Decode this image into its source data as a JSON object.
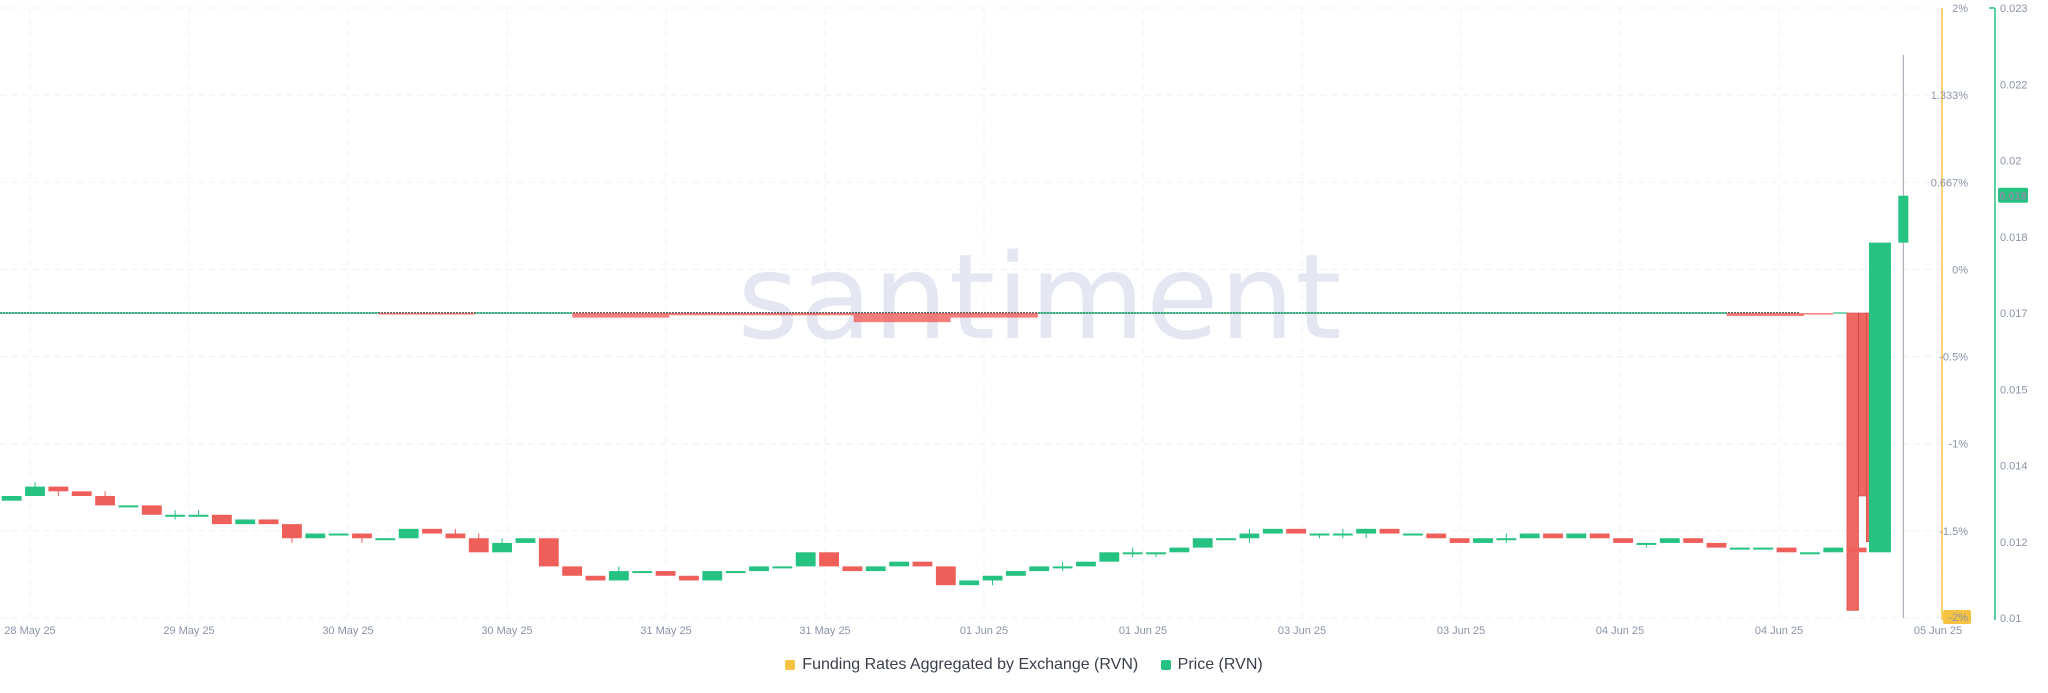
{
  "chart_data": {
    "type": "candlestick",
    "watermark": "santiment",
    "x_tick_labels": [
      "28 May 25",
      "29 May 25",
      "30 May 25",
      "30 May 25",
      "31 May 25",
      "31 May 25",
      "01 Jun 25",
      "01 Jun 25",
      "03 Jun 25",
      "03 Jun 25",
      "04 Jun 25",
      "04 Jun 25",
      "05 Jun 25"
    ],
    "y_left": {
      "label": "",
      "range": [
        -2,
        2
      ],
      "unit": "%",
      "ticks": [
        "2%",
        "1.333%",
        "0.667%",
        "0%",
        "-0.5%",
        "-1%",
        "-1.5%",
        "-2%"
      ],
      "highlight": "-2%"
    },
    "y_right": {
      "label": "",
      "range": [
        0.01,
        0.023
      ],
      "ticks": [
        "0.023",
        "0.022",
        "0.02",
        "0.018",
        "0.017",
        "0.015",
        "0.014",
        "0.012",
        "0.01"
      ],
      "last_price_label": "0.019"
    },
    "grid": true,
    "legend_position": "bottom-center",
    "colors": {
      "up": "#26c281",
      "down": "#ef5f5a",
      "funding_axis": "#f5c242",
      "price_axis": "#26c281",
      "grid": "#eef0f4",
      "highlight_bg": "#f5c242"
    },
    "series": [
      {
        "name": "Funding Rates Aggregated by Exchange (RVN)",
        "color": "#f5c242",
        "segments": [
          {
            "from": 0,
            "to": 0.195,
            "value": 0.005
          },
          {
            "from": 0.195,
            "to": 0.245,
            "value": -0.01
          },
          {
            "from": 0.245,
            "to": 0.295,
            "value": 0.005
          },
          {
            "from": 0.295,
            "to": 0.345,
            "value": -0.03
          },
          {
            "from": 0.345,
            "to": 0.44,
            "value": -0.015
          },
          {
            "from": 0.44,
            "to": 0.49,
            "value": -0.06
          },
          {
            "from": 0.49,
            "to": 0.535,
            "value": -0.03
          },
          {
            "from": 0.535,
            "to": 0.89,
            "value": 0.005
          },
          {
            "from": 0.89,
            "to": 0.93,
            "value": -0.02
          },
          {
            "from": 0.93,
            "to": 0.945,
            "value": -0.005
          },
          {
            "from": 0.945,
            "to": 0.952,
            "value": 0.005
          },
          {
            "from": 0.952,
            "to": 0.958,
            "value": -1.95
          },
          {
            "from": 0.958,
            "to": 0.962,
            "value": -1.2
          },
          {
            "from": 0.962,
            "to": 0.966,
            "value": -1.5
          }
        ]
      },
      {
        "name": "Price (RVN)",
        "color": "#26c281",
        "candles": [
          [
            0.0125,
            0.0126,
            0.0125,
            0.0126
          ],
          [
            0.0126,
            0.0129,
            0.0127,
            0.0128
          ],
          [
            0.0128,
            0.0128,
            0.0126,
            0.0127
          ],
          [
            0.0127,
            0.0127,
            0.0126,
            0.0126
          ],
          [
            0.0126,
            0.0127,
            0.0124,
            0.0124
          ],
          [
            0.0124,
            0.0124,
            0.0124,
            0.0124
          ],
          [
            0.0124,
            0.0124,
            0.0122,
            0.0122
          ],
          [
            0.0122,
            0.0123,
            0.0121,
            0.0122
          ],
          [
            0.0122,
            0.0123,
            0.0122,
            0.0122
          ],
          [
            0.0122,
            0.0122,
            0.012,
            0.012
          ],
          [
            0.012,
            0.0121,
            0.012,
            0.0121
          ],
          [
            0.0121,
            0.0121,
            0.012,
            0.012
          ],
          [
            0.012,
            0.012,
            0.0116,
            0.0117
          ],
          [
            0.0117,
            0.0118,
            0.0117,
            0.0118
          ],
          [
            0.0118,
            0.0118,
            0.0118,
            0.0118
          ],
          [
            0.0118,
            0.0118,
            0.0116,
            0.0117
          ],
          [
            0.0117,
            0.0117,
            0.0117,
            0.0117
          ],
          [
            0.0117,
            0.0119,
            0.0117,
            0.0119
          ],
          [
            0.0119,
            0.0119,
            0.0118,
            0.0118
          ],
          [
            0.0118,
            0.0119,
            0.0117,
            0.0117
          ],
          [
            0.0117,
            0.0118,
            0.0115,
            0.0114
          ],
          [
            0.0114,
            0.0117,
            0.0114,
            0.0116
          ],
          [
            0.0116,
            0.0117,
            0.0116,
            0.0117
          ],
          [
            0.0117,
            0.0117,
            0.0111,
            0.0111
          ],
          [
            0.0111,
            0.0111,
            0.0109,
            0.0109
          ],
          [
            0.0109,
            0.0109,
            0.0108,
            0.0108
          ],
          [
            0.0108,
            0.0111,
            0.0108,
            0.011
          ],
          [
            0.011,
            0.011,
            0.011,
            0.011
          ],
          [
            0.011,
            0.011,
            0.0109,
            0.0109
          ],
          [
            0.0109,
            0.0109,
            0.0108,
            0.0108
          ],
          [
            0.0108,
            0.011,
            0.0108,
            0.011
          ],
          [
            0.011,
            0.011,
            0.011,
            0.011
          ],
          [
            0.011,
            0.0111,
            0.011,
            0.0111
          ],
          [
            0.0111,
            0.0111,
            0.0111,
            0.0111
          ],
          [
            0.0111,
            0.0114,
            0.0111,
            0.0114
          ],
          [
            0.0114,
            0.0114,
            0.0111,
            0.0111
          ],
          [
            0.0111,
            0.0111,
            0.011,
            0.011
          ],
          [
            0.011,
            0.0111,
            0.011,
            0.0111
          ],
          [
            0.0111,
            0.0112,
            0.0111,
            0.0112
          ],
          [
            0.0112,
            0.0112,
            0.0111,
            0.0111
          ],
          [
            0.0111,
            0.0111,
            0.0107,
            0.0107
          ],
          [
            0.0107,
            0.0108,
            0.0107,
            0.0108
          ],
          [
            0.0108,
            0.0109,
            0.0107,
            0.0109
          ],
          [
            0.0109,
            0.011,
            0.0109,
            0.011
          ],
          [
            0.011,
            0.0111,
            0.011,
            0.0111
          ],
          [
            0.0111,
            0.0112,
            0.011,
            0.0111
          ],
          [
            0.0111,
            0.0112,
            0.0111,
            0.0112
          ],
          [
            0.0112,
            0.0114,
            0.0112,
            0.0114
          ],
          [
            0.0114,
            0.0115,
            0.0113,
            0.0114
          ],
          [
            0.0114,
            0.0114,
            0.0113,
            0.0114
          ],
          [
            0.0114,
            0.0115,
            0.0114,
            0.0115
          ],
          [
            0.0115,
            0.0117,
            0.0115,
            0.0117
          ],
          [
            0.0117,
            0.0117,
            0.0117,
            0.0117
          ],
          [
            0.0117,
            0.0119,
            0.0116,
            0.0118
          ],
          [
            0.0118,
            0.0119,
            0.0118,
            0.0119
          ],
          [
            0.0119,
            0.0119,
            0.0118,
            0.0118
          ],
          [
            0.0118,
            0.0118,
            0.0117,
            0.0118
          ],
          [
            0.0118,
            0.0119,
            0.0117,
            0.0118
          ],
          [
            0.0118,
            0.0119,
            0.0117,
            0.0119
          ],
          [
            0.0119,
            0.0119,
            0.0118,
            0.0118
          ],
          [
            0.0118,
            0.0118,
            0.0118,
            0.0118
          ],
          [
            0.0118,
            0.0118,
            0.0117,
            0.0117
          ],
          [
            0.0117,
            0.0117,
            0.0116,
            0.0116
          ],
          [
            0.0116,
            0.0117,
            0.0116,
            0.0117
          ],
          [
            0.0117,
            0.0118,
            0.0116,
            0.0117
          ],
          [
            0.0117,
            0.0118,
            0.0117,
            0.0118
          ],
          [
            0.0118,
            0.0118,
            0.0117,
            0.0117
          ],
          [
            0.0117,
            0.0118,
            0.0117,
            0.0118
          ],
          [
            0.0118,
            0.0118,
            0.0117,
            0.0117
          ],
          [
            0.0117,
            0.0117,
            0.0116,
            0.0116
          ],
          [
            0.0116,
            0.0116,
            0.0115,
            0.0116
          ],
          [
            0.0116,
            0.0117,
            0.0116,
            0.0117
          ],
          [
            0.0117,
            0.0117,
            0.0116,
            0.0116
          ],
          [
            0.0116,
            0.0116,
            0.0115,
            0.0115
          ],
          [
            0.0115,
            0.0115,
            0.0115,
            0.0115
          ],
          [
            0.0115,
            0.0115,
            0.0115,
            0.0115
          ],
          [
            0.0115,
            0.0115,
            0.0114,
            0.0114
          ],
          [
            0.0114,
            0.0114,
            0.0114,
            0.0114
          ],
          [
            0.0114,
            0.0115,
            0.0114,
            0.0115
          ],
          [
            0.0115,
            0.0115,
            0.0114,
            0.0114
          ],
          [
            0.0114,
            0.018,
            0.0114,
            0.018
          ],
          [
            0.018,
            0.022,
            0.01,
            0.019
          ]
        ]
      }
    ]
  },
  "legend": [
    {
      "label": "Funding Rates Aggregated by Exchange (RVN)",
      "color": "#f5c242"
    },
    {
      "label": "Price (RVN)",
      "color": "#26c281"
    }
  ]
}
